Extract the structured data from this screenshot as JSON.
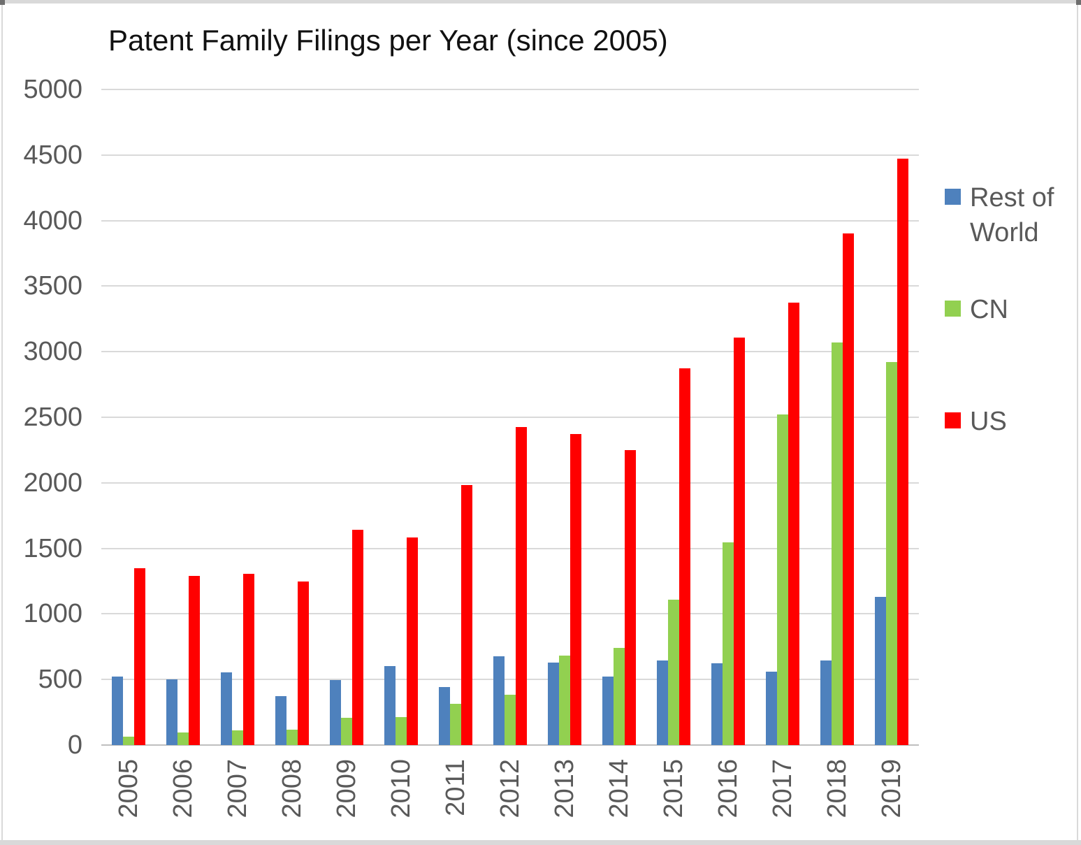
{
  "chart_data": {
    "type": "bar",
    "title": "Patent Family Filings per Year (since 2005)",
    "categories": [
      "2005",
      "2006",
      "2007",
      "2008",
      "2009",
      "2010",
      "2011",
      "2012",
      "2013",
      "2014",
      "2015",
      "2016",
      "2017",
      "2018",
      "2019"
    ],
    "series": [
      {
        "name": "Rest of World",
        "color": "#4E81BD",
        "values": [
          520,
          500,
          555,
          375,
          495,
          605,
          445,
          675,
          630,
          525,
          645,
          625,
          560,
          645,
          1130
        ]
      },
      {
        "name": "CN",
        "color": "#92D050",
        "values": [
          65,
          95,
          110,
          120,
          210,
          215,
          315,
          385,
          685,
          740,
          1110,
          1545,
          2520,
          3070,
          2920
        ]
      },
      {
        "name": "US",
        "color": "#FF0000",
        "values": [
          1350,
          1290,
          1305,
          1245,
          1640,
          1585,
          1985,
          2425,
          2370,
          2250,
          2875,
          3110,
          3375,
          3900,
          4470
        ]
      }
    ],
    "xlabel": "",
    "ylabel": "",
    "ylim": [
      0,
      5000
    ],
    "ytick_step": 500,
    "grid": true,
    "legend_position": "right"
  }
}
